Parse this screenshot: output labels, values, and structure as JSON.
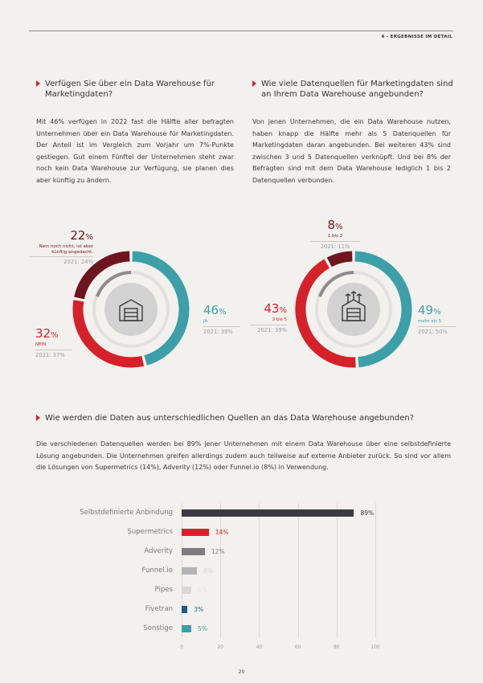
{
  "header": {
    "section": "4 - ERGEBNISSE IM DETAIL"
  },
  "left": {
    "question": "Verfügen Sie über ein Data Warehouse für Marketingdaten?",
    "text": "Mit 46% verfügen in 2022 fast die Hälfte aller befragten Unternehmen über ein Data Warehouse für Marketingdaten. Der Anteil ist im Vergleich zum Vorjahr um 7%-Punkte gestiegen. Gut einem Fünftel der Unternehmen steht zwar noch kein Data Warehouse zur Verfügung, sie planen dies aber künftig zu ändern.",
    "donut": {
      "segments": [
        {
          "value": "46",
          "unit": "%",
          "label": "JA",
          "prev": "2021: 39%",
          "share": 46,
          "color": "#3d9fa8"
        },
        {
          "value": "32",
          "unit": "%",
          "label": "NEIN",
          "prev": "2021: 37%",
          "share": 32,
          "color": "#d6202a"
        },
        {
          "value": "22",
          "unit": "%",
          "label": "Nein noch nicht, ist aber künftig angedacht.",
          "prev": "2021: 24%",
          "share": 22,
          "color": "#6e1620"
        }
      ]
    }
  },
  "right": {
    "question": "Wie viele Datenquellen für Marketingdaten sind an Ihrem Data Warehouse angebunden?",
    "text": "Von jenen Unternehmen, die ein Data Warehouse nutzen, haben knapp die Hälfte mehr als 5 Datenquellen für Marketingdaten daran angebunden. Bei weiteren 43% sind zwischen 3 und 5 Datenquellen verknüpft. Und bei 8% der Befragten sind mit dem Data Warehouse lediglich 1 bis 2 Datenquellen verbunden.",
    "donut": {
      "segments": [
        {
          "value": "49",
          "unit": "%",
          "label": "mehr als 5",
          "prev": "2021: 50%",
          "share": 49,
          "color": "#3d9fa8"
        },
        {
          "value": "43",
          "unit": "%",
          "label": "3 bis 5",
          "prev": "2021: 39%",
          "share": 43,
          "color": "#d6202a"
        },
        {
          "value": "8",
          "unit": "%",
          "label": "1 bis 2",
          "prev": "2021: 11%",
          "share": 8,
          "color": "#6e1620"
        }
      ]
    }
  },
  "bottom": {
    "question": "Wie werden die Daten aus unterschiedlichen Quellen an das Data Warehouse angebunden?",
    "text": "Die verschiedenen Datenquellen werden bei 89% jener Unternehmen mit einem Data Warehouse über eine selbstdefinierte Lösung angebunden. Die Unternehmen greifen allerdings zudem auch teilweise auf externe Anbieter zurück. So sind vor allem die Lösungen von Supermetrics (14%), Adverity (12%) oder Funnel.io (8%) in Verwendung."
  },
  "chart_data": {
    "type": "bar",
    "orientation": "horizontal",
    "categories": [
      "Selbstdefinierte Anbindung",
      "Supermetrics",
      "Adverity",
      "Funnel.io",
      "Pipes",
      "Fivetran",
      "Sonstige"
    ],
    "values": [
      89,
      14,
      12,
      8,
      5,
      3,
      5
    ],
    "value_labels": [
      "89%",
      "14%",
      "12%",
      "8%",
      "5%",
      "3%",
      "5%"
    ],
    "colors": [
      "#3a3a40",
      "#d6202a",
      "#7d7d80",
      "#b4b4b4",
      "#d9d9d9",
      "#1f5a8a",
      "#3d9fa8"
    ],
    "label_colors": [
      "#3a3a3a",
      "#d6202a",
      "#7d7d80",
      "#d4d4d4",
      "#e2e2e2",
      "#1f5a8a",
      "#3d9fa8"
    ],
    "xlim": [
      0,
      100
    ],
    "xticks": [
      "0",
      "20",
      "40",
      "60",
      "80",
      "100"
    ]
  },
  "footer": {
    "page": "20"
  }
}
